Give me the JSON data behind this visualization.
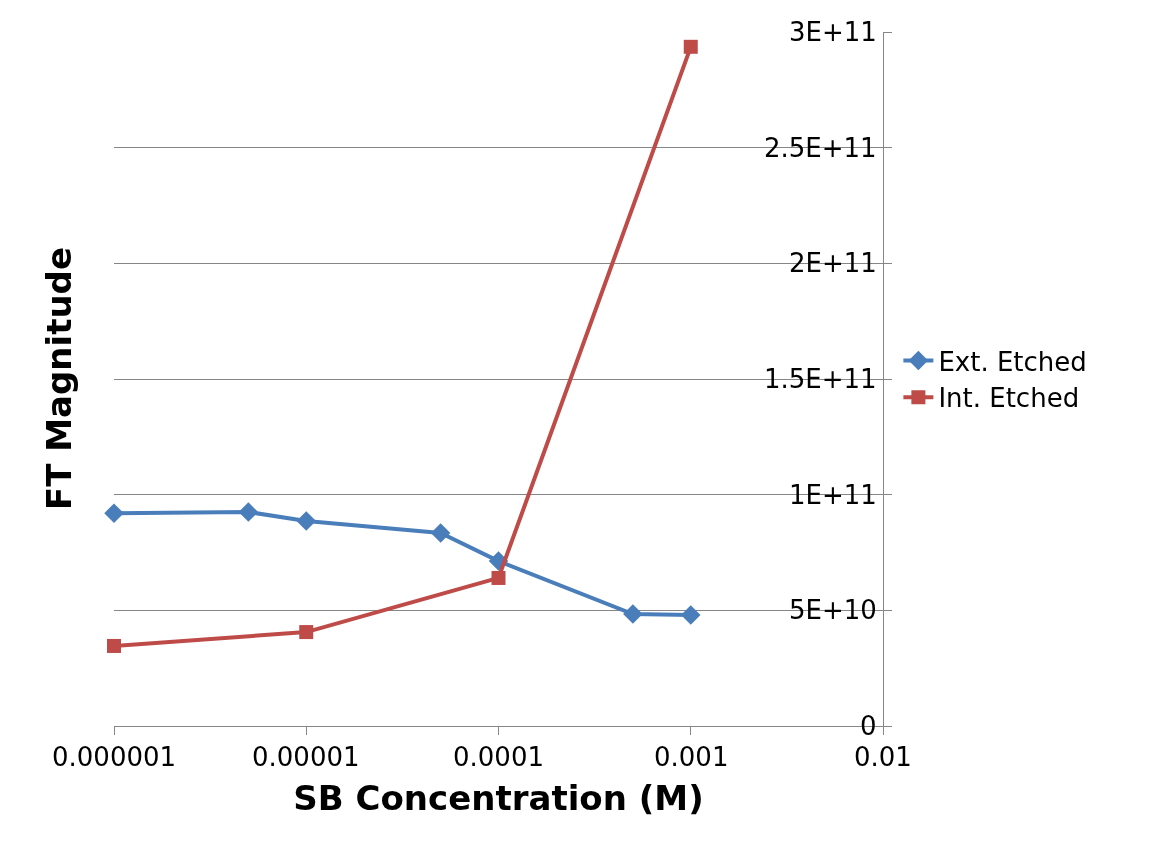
{
  "chart_data": {
    "type": "line",
    "xlabel": "SB Concentration (M)",
    "ylabel": "FT Magnitude",
    "log": "x",
    "grid": "y",
    "legend": "right",
    "line_style": "solid",
    "xlim": [
      1e-06,
      0.01
    ],
    "xticks": [
      {
        "value": 1e-06,
        "label": "0.000001"
      },
      {
        "value": 1e-05,
        "label": "0.00001"
      },
      {
        "value": 0.0001,
        "label": "0.0001"
      },
      {
        "value": 0.001,
        "label": "0.001"
      },
      {
        "value": 0.01,
        "label": "0.01"
      }
    ],
    "ylim": [
      0,
      300000000000
    ],
    "yticks": [
      {
        "value": 0,
        "label": "0"
      },
      {
        "value": 50000000000,
        "label": "5E+10"
      },
      {
        "value": 100000000000,
        "label": "1E+11"
      },
      {
        "value": 150000000000,
        "label": "1.5E+11"
      },
      {
        "value": 200000000000,
        "label": "2E+11"
      },
      {
        "value": 250000000000,
        "label": "2.5E+11"
      },
      {
        "value": 300000000000,
        "label": "3E+11"
      }
    ],
    "series": [
      {
        "name": "Ext. Etched",
        "color": "#4a7ebb",
        "marker": "diamond",
        "x": [
          1e-06,
          5e-06,
          1e-05,
          5e-05,
          0.0001,
          0.0005,
          0.001
        ],
        "values": [
          92000000000,
          92500000000,
          88600000000,
          83400000000,
          71300000000,
          48400000000,
          48000000000
        ]
      },
      {
        "name": "Int. Etched",
        "color": "#be4b48",
        "marker": "square",
        "x": [
          1e-06,
          1e-05,
          0.0001,
          0.001
        ],
        "values": [
          34600000000,
          40600000000,
          64000000000,
          293600000000
        ]
      }
    ]
  }
}
